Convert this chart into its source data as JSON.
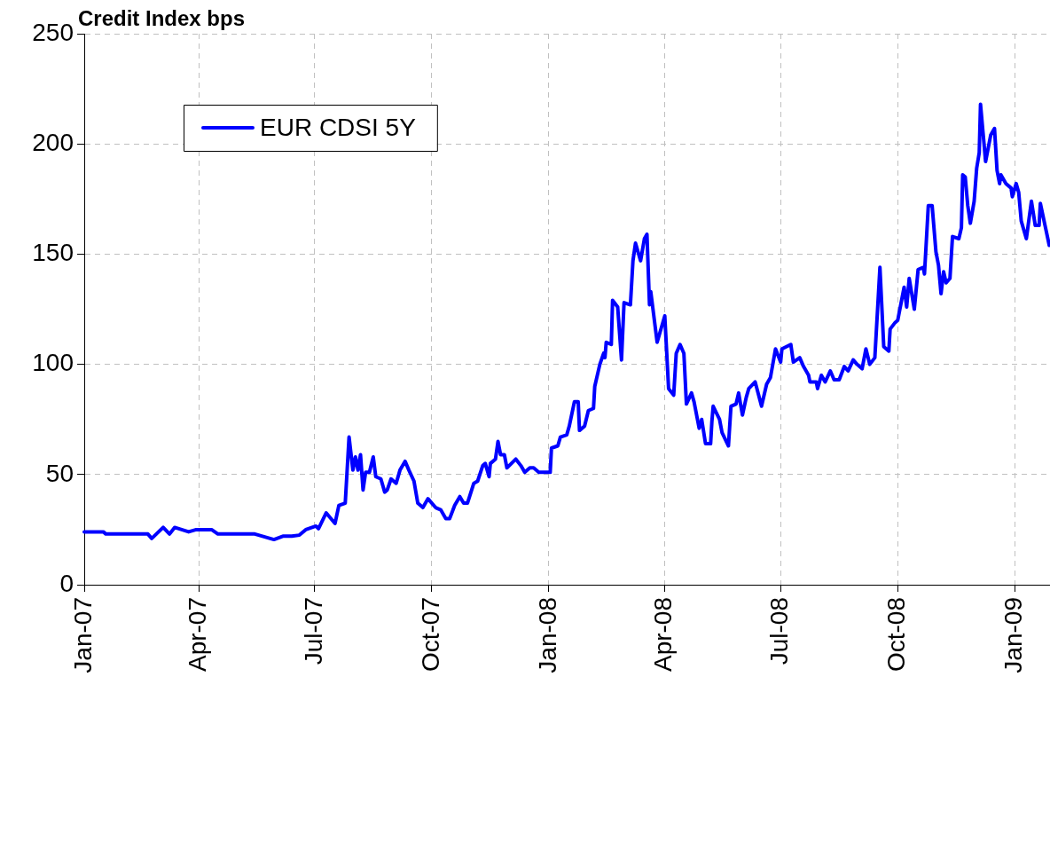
{
  "chart_data": {
    "type": "line",
    "title": "Credit Index bps",
    "legend": "top left",
    "grid": true,
    "line_style": "solid",
    "marker": "none",
    "xlim": [
      "2007-01-01",
      "2009-01-28"
    ],
    "xticks": [
      {
        "value": "2007-01-01",
        "label": "Jan-07"
      },
      {
        "value": "2007-04-01",
        "label": "Apr-07"
      },
      {
        "value": "2007-07-01",
        "label": "Jul-07"
      },
      {
        "value": "2007-10-01",
        "label": "Oct-07"
      },
      {
        "value": "2008-01-01",
        "label": "Jan-08"
      },
      {
        "value": "2008-04-01",
        "label": "Apr-08"
      },
      {
        "value": "2008-07-01",
        "label": "Jul-08"
      },
      {
        "value": "2008-10-01",
        "label": "Oct-08"
      },
      {
        "value": "2009-01-01",
        "label": "Jan-09"
      }
    ],
    "ylim": [
      0,
      250
    ],
    "yticks": [
      0,
      50,
      100,
      150,
      200,
      250
    ],
    "x": [
      "2007-01-01",
      "2007-01-16",
      "2007-01-18",
      "2007-02-20",
      "2007-02-23",
      "2007-03-04",
      "2007-03-09",
      "2007-03-13",
      "2007-03-24",
      "2007-03-30",
      "2007-04-11",
      "2007-04-16",
      "2007-05-15",
      "2007-05-21",
      "2007-05-30",
      "2007-06-06",
      "2007-06-13",
      "2007-06-19",
      "2007-06-24",
      "2007-07-02",
      "2007-07-04",
      "2007-07-10",
      "2007-07-17",
      "2007-07-20",
      "2007-07-25",
      "2007-07-28",
      "2007-07-31",
      "2007-08-02",
      "2007-08-04",
      "2007-08-06",
      "2007-08-08",
      "2007-08-10",
      "2007-08-13",
      "2007-08-16",
      "2007-08-18",
      "2007-08-22",
      "2007-08-25",
      "2007-08-27",
      "2007-08-30",
      "2007-09-03",
      "2007-09-06",
      "2007-09-10",
      "2007-09-13",
      "2007-09-17",
      "2007-09-20",
      "2007-09-24",
      "2007-09-28",
      "2007-10-04",
      "2007-10-08",
      "2007-10-12",
      "2007-10-15",
      "2007-10-19",
      "2007-10-23",
      "2007-10-26",
      "2007-10-29",
      "2007-11-03",
      "2007-11-06",
      "2007-11-10",
      "2007-11-12",
      "2007-11-15",
      "2007-11-16",
      "2007-11-20",
      "2007-11-22",
      "2007-11-24",
      "2007-11-27",
      "2007-11-29",
      "2007-12-06",
      "2007-12-10",
      "2007-12-13",
      "2007-12-17",
      "2007-12-20",
      "2007-12-24",
      "2008-01-02",
      "2008-01-03",
      "2008-01-08",
      "2008-01-10",
      "2008-01-15",
      "2008-01-17",
      "2008-01-21",
      "2008-01-24",
      "2008-01-25",
      "2008-01-29",
      "2008-02-01",
      "2008-02-05",
      "2008-02-06",
      "2008-02-10",
      "2008-02-13",
      "2008-02-14",
      "2008-02-15",
      "2008-02-19",
      "2008-02-20",
      "2008-02-24",
      "2008-02-27",
      "2008-02-29",
      "2008-03-05",
      "2008-03-07",
      "2008-03-09",
      "2008-03-13",
      "2008-03-16",
      "2008-03-17",
      "2008-03-18",
      "2008-03-20",
      "2008-03-21",
      "2008-03-26",
      "2008-04-01",
      "2008-04-04",
      "2008-04-08",
      "2008-04-10",
      "2008-04-13",
      "2008-04-16",
      "2008-04-18",
      "2008-04-22",
      "2008-04-24",
      "2008-04-28",
      "2008-04-30",
      "2008-05-03",
      "2008-05-07",
      "2008-05-08",
      "2008-05-09",
      "2008-05-14",
      "2008-05-16",
      "2008-05-21",
      "2008-05-22",
      "2008-05-23",
      "2008-05-27",
      "2008-05-29",
      "2008-06-01",
      "2008-06-04",
      "2008-06-06",
      "2008-06-11",
      "2008-06-16",
      "2008-06-20",
      "2008-06-23",
      "2008-06-27",
      "2008-07-01",
      "2008-07-02",
      "2008-07-09",
      "2008-07-11",
      "2008-07-16",
      "2008-07-19",
      "2008-07-23",
      "2008-07-24",
      "2008-07-29",
      "2008-07-30",
      "2008-08-02",
      "2008-08-05",
      "2008-08-09",
      "2008-08-12",
      "2008-08-16",
      "2008-08-20",
      "2008-08-23",
      "2008-08-27",
      "2008-08-30",
      "2008-09-03",
      "2008-09-06",
      "2008-09-09",
      "2008-09-13",
      "2008-09-17",
      "2008-09-20",
      "2008-09-24",
      "2008-09-25",
      "2008-09-29",
      "2008-10-01",
      "2008-10-06",
      "2008-10-08",
      "2008-10-10",
      "2008-10-14",
      "2008-10-17",
      "2008-10-21",
      "2008-10-22",
      "2008-10-25",
      "2008-10-28",
      "2008-10-31",
      "2008-11-02",
      "2008-11-04",
      "2008-11-06",
      "2008-11-08",
      "2008-11-11",
      "2008-11-13",
      "2008-11-18",
      "2008-11-20",
      "2008-11-21",
      "2008-11-23",
      "2008-11-25",
      "2008-11-27",
      "2008-11-30",
      "2008-12-02",
      "2008-12-04",
      "2008-12-05",
      "2008-12-07",
      "2008-12-09",
      "2008-12-13",
      "2008-12-16",
      "2008-12-18",
      "2008-12-20",
      "2008-12-21",
      "2008-12-25",
      "2008-12-29",
      "2008-12-30",
      "2009-01-02",
      "2009-01-04",
      "2009-01-06",
      "2009-01-10",
      "2009-01-14",
      "2009-01-17",
      "2009-01-20",
      "2009-01-21",
      "2009-01-28"
    ],
    "series": [
      {
        "name": "EUR CDSI 5Y",
        "color": "#0000ff",
        "values": [
          24,
          24,
          23,
          23,
          21,
          26,
          23,
          26,
          24,
          25,
          25,
          23,
          23,
          22,
          20.5,
          22,
          22,
          22.5,
          25,
          26.6,
          25.4,
          32.6,
          27.8,
          36,
          37,
          67,
          52,
          58,
          52,
          59,
          43,
          51,
          51,
          58,
          49,
          48,
          42,
          43,
          48,
          46,
          52,
          56,
          52,
          47,
          37,
          35,
          39,
          35,
          34,
          30,
          30,
          36,
          40,
          37,
          37,
          46,
          47,
          54,
          55,
          49,
          55,
          57,
          65,
          59,
          59,
          53,
          57,
          54,
          51,
          53,
          53,
          51,
          51,
          62,
          63,
          67,
          68,
          72,
          83,
          83,
          70,
          72,
          79,
          80,
          90,
          100,
          105,
          103,
          110,
          109,
          129,
          126,
          102,
          128,
          127,
          147,
          155,
          147,
          157,
          158,
          159,
          127,
          133,
          110,
          122,
          89,
          86,
          105,
          109,
          105,
          82,
          87,
          83,
          71,
          75,
          64,
          64,
          74,
          81,
          75,
          69,
          63,
          72,
          81,
          82,
          87,
          77,
          85,
          89,
          92,
          81,
          91,
          94,
          107,
          101,
          107,
          109,
          101,
          103,
          99,
          95,
          92,
          92,
          89,
          95,
          92,
          97,
          93,
          93,
          99,
          97,
          102,
          100,
          98,
          107,
          100,
          103,
          144,
          108,
          106,
          116,
          119,
          120,
          135,
          126,
          139,
          125,
          143,
          144,
          141,
          172,
          172,
          151,
          145,
          132,
          142,
          137,
          139,
          158,
          157,
          162,
          186,
          185,
          172,
          164,
          174,
          189,
          196,
          218,
          205,
          192,
          204,
          207,
          188,
          182,
          186,
          182,
          180,
          176,
          182,
          178,
          165,
          157,
          174,
          163,
          163,
          173,
          154
        ]
      }
    ]
  }
}
